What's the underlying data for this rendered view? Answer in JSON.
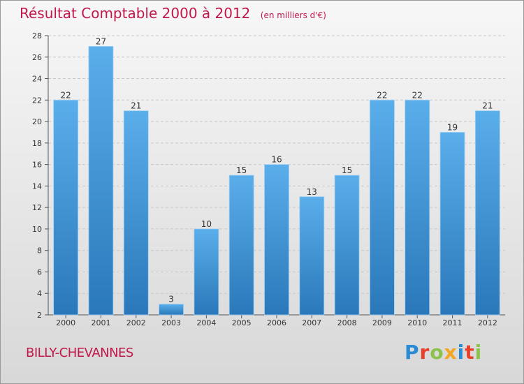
{
  "header": {
    "title": "Résultat Comptable 2000 à 2012",
    "subtitle": "(en milliers d'€)"
  },
  "footer": {
    "region": "BILLY-CHEVANNES",
    "brand": "Proxiti"
  },
  "colors": {
    "title": "#c0184a",
    "bar_top": "#5aaeea",
    "bar_bottom": "#2a78ba"
  },
  "chart_data": {
    "type": "bar",
    "title": "Résultat Comptable 2000 à 2012",
    "subtitle": "(en milliers d'€)",
    "xlabel": "",
    "ylabel": "",
    "categories": [
      "2000",
      "2001",
      "2002",
      "2003",
      "2004",
      "2005",
      "2006",
      "2007",
      "2008",
      "2009",
      "2010",
      "2011",
      "2012"
    ],
    "values": [
      22,
      27,
      21,
      3,
      10,
      15,
      16,
      13,
      15,
      22,
      22,
      19,
      21
    ],
    "ylim": [
      2,
      28
    ],
    "yticks": [
      2,
      4,
      6,
      8,
      10,
      12,
      14,
      16,
      18,
      20,
      22,
      24,
      26,
      28
    ],
    "grid": true
  }
}
